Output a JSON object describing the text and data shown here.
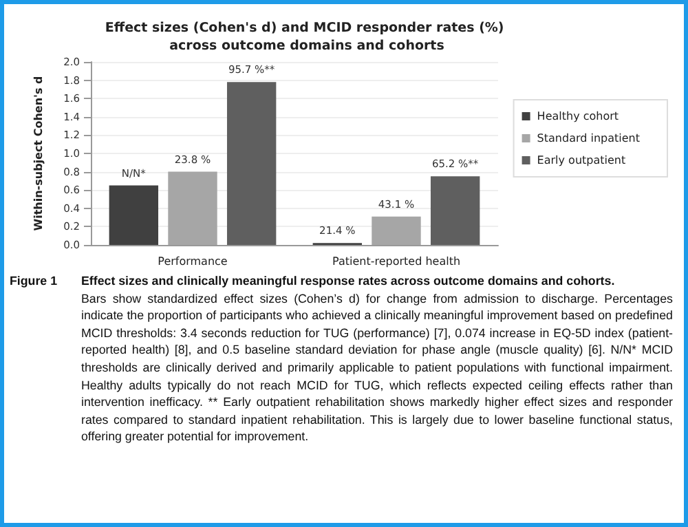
{
  "chart_data": {
    "type": "bar",
    "title": "Effect sizes (Cohen's d) and MCID responder rates (%) across outcome domains and cohorts",
    "ylabel": "Within-subject Cohen's d",
    "categories": [
      "Performance",
      "Patient-reported health"
    ],
    "series": [
      {
        "name": "Healthy cohort",
        "color": "#404040",
        "values": [
          0.65,
          0.02
        ]
      },
      {
        "name": "Standard inpatient",
        "color": "#a6a6a6",
        "values": [
          0.8,
          0.31
        ]
      },
      {
        "name": "Early outpatient",
        "color": "#5f5f5f",
        "values": [
          1.78,
          0.75
        ]
      }
    ],
    "ylim": [
      0,
      2
    ],
    "yticks": [
      {
        "value": 0,
        "label": "0.0"
      },
      0.2,
      0.4,
      0.6,
      0.8,
      {
        "value": 1,
        "label": "1.0"
      },
      1.2,
      1.4,
      1.6,
      1.8,
      {
        "value": 2,
        "label": "2.0"
      }
    ],
    "grid": "y",
    "legend": "right",
    "annotations": [
      "N/N*",
      "21.4 %",
      "23.8 %",
      "43.1 %",
      "95.7 %**",
      "65.2 %**",
      "Figure 1",
      "Effect sizes and clinically meaningful response rates across outcome domains and cohorts.",
      "Bars show standardized effect sizes (Cohen’s d) for change from admission to discharge. Percentages indicate the proportion of participants who achieved a clinically meaningful improvement based on predefined MCID thresholds: 3.4 seconds reduction for TUG (performance) [7], 0.074 increase in EQ-5D index (patient-reported health) [8], and 0.5 baseline standard deviation for phase angle (muscle quality) [6]. N/N* MCID thresholds are clinically derived and primarily applicable to patient populations with functional impairment. Healthy adults typically do not reach MCID for TUG, which reflects expected ceiling effects rather than intervention inefficacy. ** Early outpatient rehabilitation shows markedly higher effect sizes and responder rates compared to standard inpatient rehabilitation. This is largely due to lower baseline functional status, offering greater potential for improvement."
    ]
  }
}
